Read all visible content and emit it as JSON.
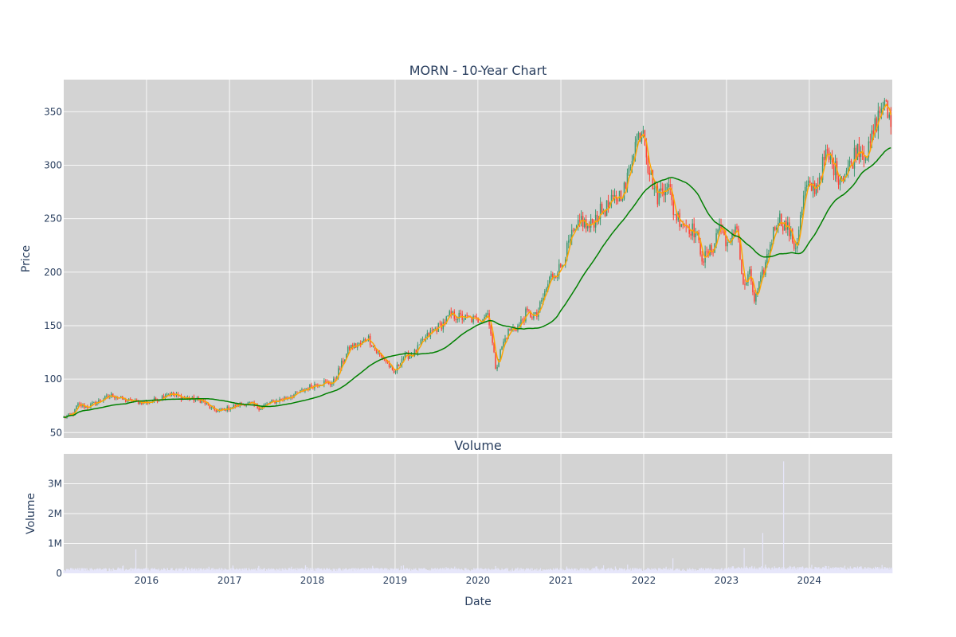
{
  "chart_data": {
    "type": "line",
    "title": "MORN - 10-Year Chart",
    "subplot_titles": [
      "",
      "Volume"
    ],
    "price_panel": {
      "ylabel": "Price",
      "y_ticks": [
        50,
        100,
        150,
        200,
        250,
        300,
        350
      ],
      "ylim": [
        45,
        380
      ],
      "grid": true,
      "series": [
        {
          "name": "",
          "kind": "candlestick",
          "up_color": "#3d9970",
          "down_color": "#ff4136"
        },
        {
          "name": "",
          "kind": "line",
          "color": "#ffa500",
          "window": 20
        },
        {
          "name": "",
          "kind": "line",
          "color": "#008000",
          "window": 200
        }
      ]
    },
    "volume_panel": {
      "ylabel": "Volume",
      "y_ticks": [
        0,
        1000000,
        2000000,
        3000000
      ],
      "y_tick_labels": [
        "0",
        "1M",
        "2M",
        "3M"
      ],
      "ylim": [
        0,
        4000000
      ],
      "grid": true,
      "bar_color": "#e6e6fa"
    },
    "x": {
      "xlabel": "Date",
      "ticks": [
        "2016",
        "2017",
        "2018",
        "2019",
        "2020",
        "2021",
        "2022",
        "2023",
        "2024"
      ],
      "range": [
        "2015-01-01",
        "2025-01-01"
      ]
    },
    "price_keypoints": [
      [
        "2015-01-01",
        64
      ],
      [
        "2015-02-15",
        68
      ],
      [
        "2015-03-01",
        76
      ],
      [
        "2015-04-15",
        74
      ],
      [
        "2015-07-01",
        82
      ],
      [
        "2015-08-01",
        85
      ],
      [
        "2015-10-01",
        80
      ],
      [
        "2016-01-01",
        78
      ],
      [
        "2016-03-01",
        82
      ],
      [
        "2016-04-01",
        87
      ],
      [
        "2016-06-01",
        83
      ],
      [
        "2016-09-01",
        80
      ],
      [
        "2016-10-15",
        72
      ],
      [
        "2016-11-15",
        70
      ],
      [
        "2017-01-15",
        74
      ],
      [
        "2017-03-01",
        77
      ],
      [
        "2017-04-01",
        77
      ],
      [
        "2017-05-15",
        73
      ],
      [
        "2017-07-01",
        78
      ],
      [
        "2017-09-01",
        82
      ],
      [
        "2017-11-01",
        87
      ],
      [
        "2018-01-01",
        94
      ],
      [
        "2018-02-15",
        97
      ],
      [
        "2018-04-01",
        96
      ],
      [
        "2018-05-01",
        110
      ],
      [
        "2018-06-15",
        130
      ],
      [
        "2018-08-01",
        132
      ],
      [
        "2018-09-01",
        140
      ],
      [
        "2018-10-15",
        124
      ],
      [
        "2018-12-01",
        115
      ],
      [
        "2018-12-24",
        104
      ],
      [
        "2019-02-01",
        120
      ],
      [
        "2019-04-01",
        125
      ],
      [
        "2019-05-01",
        135
      ],
      [
        "2019-06-15",
        145
      ],
      [
        "2019-08-01",
        152
      ],
      [
        "2019-09-01",
        160
      ],
      [
        "2019-11-01",
        157
      ],
      [
        "2020-01-01",
        155
      ],
      [
        "2020-02-15",
        162
      ],
      [
        "2020-03-20",
        110
      ],
      [
        "2020-04-15",
        130
      ],
      [
        "2020-05-15",
        145
      ],
      [
        "2020-07-01",
        150
      ],
      [
        "2020-08-01",
        162
      ],
      [
        "2020-09-15",
        158
      ],
      [
        "2020-11-15",
        195
      ],
      [
        "2021-01-01",
        205
      ],
      [
        "2021-02-15",
        232
      ],
      [
        "2021-03-15",
        240
      ],
      [
        "2021-04-01",
        250
      ],
      [
        "2021-05-01",
        240
      ],
      [
        "2021-06-15",
        255
      ],
      [
        "2021-08-01",
        262
      ],
      [
        "2021-09-15",
        272
      ],
      [
        "2021-10-15",
        280
      ],
      [
        "2021-11-15",
        315
      ],
      [
        "2021-12-31",
        338
      ],
      [
        "2022-01-20",
        300
      ],
      [
        "2022-03-01",
        270
      ],
      [
        "2022-04-15",
        285
      ],
      [
        "2022-05-15",
        255
      ],
      [
        "2022-07-01",
        245
      ],
      [
        "2022-08-15",
        238
      ],
      [
        "2022-09-20",
        212
      ],
      [
        "2022-11-01",
        222
      ],
      [
        "2022-12-01",
        245
      ],
      [
        "2023-01-15",
        222
      ],
      [
        "2023-02-15",
        248
      ],
      [
        "2023-03-15",
        185
      ],
      [
        "2023-04-15",
        198
      ],
      [
        "2023-05-05",
        172
      ],
      [
        "2023-06-15",
        202
      ],
      [
        "2023-07-15",
        228
      ],
      [
        "2023-08-15",
        252
      ],
      [
        "2023-10-01",
        240
      ],
      [
        "2023-11-01",
        222
      ],
      [
        "2023-12-15",
        278
      ],
      [
        "2024-02-01",
        280
      ],
      [
        "2024-03-15",
        310
      ],
      [
        "2024-04-15",
        300
      ],
      [
        "2024-05-15",
        288
      ],
      [
        "2024-07-01",
        300
      ],
      [
        "2024-08-01",
        318
      ],
      [
        "2024-09-15",
        310
      ],
      [
        "2024-10-15",
        335
      ],
      [
        "2024-11-20",
        358
      ],
      [
        "2024-12-31",
        340
      ]
    ],
    "volume_spikes": [
      [
        "2015-11-15",
        800000
      ],
      [
        "2022-01-05",
        1250000
      ],
      [
        "2022-05-10",
        500000
      ],
      [
        "2023-03-20",
        850000
      ],
      [
        "2023-06-10",
        1350000
      ],
      [
        "2023-09-10",
        3750000
      ],
      [
        "2024-11-20",
        800000
      ]
    ]
  }
}
